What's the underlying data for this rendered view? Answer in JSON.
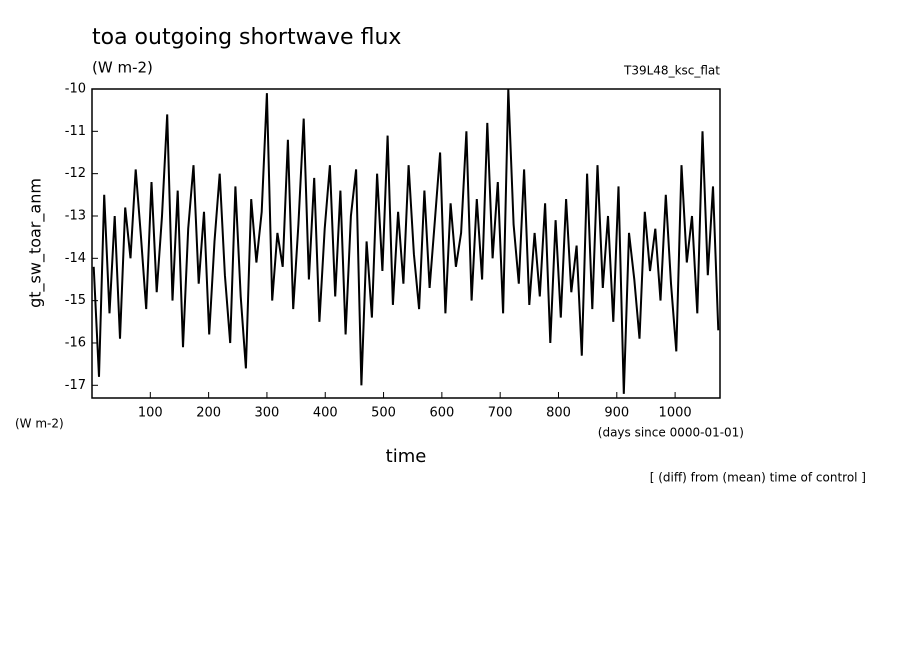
{
  "chart_data": {
    "type": "line",
    "title": "toa outgoing shortwave flux",
    "unit_top": "(W m-2)",
    "run_label": "T39L48_ksc_flat",
    "y_label": "gt_sw_toar_anm",
    "unit_left": "(W m-2)",
    "x_label": "time",
    "x_unit": "(days since 0000-01-01)",
    "note": "[ (diff) from (mean) time of control ]",
    "xlim": [
      0,
      1077
    ],
    "ylim": [
      -17.3,
      -10
    ],
    "xticks": [
      100,
      200,
      300,
      400,
      500,
      600,
      700,
      800,
      900,
      1000
    ],
    "yticks": [
      -10,
      -11,
      -12,
      -13,
      -14,
      -15,
      -16,
      -17
    ],
    "color": "#000000",
    "x": [
      3,
      12,
      21,
      30,
      39,
      48,
      57,
      66,
      75,
      84,
      93,
      102,
      111,
      120,
      129,
      138,
      147,
      156,
      165,
      174,
      183,
      192,
      201,
      210,
      219,
      228,
      237,
      246,
      255,
      264,
      273,
      282,
      291,
      300,
      309,
      318,
      327,
      336,
      345,
      354,
      363,
      372,
      381,
      390,
      399,
      408,
      417,
      426,
      435,
      444,
      453,
      462,
      471,
      480,
      489,
      498,
      507,
      516,
      525,
      534,
      543,
      552,
      561,
      570,
      579,
      588,
      597,
      606,
      615,
      624,
      633,
      642,
      651,
      660,
      669,
      678,
      687,
      696,
      705,
      714,
      723,
      732,
      741,
      750,
      759,
      768,
      777,
      786,
      795,
      804,
      813,
      822,
      831,
      840,
      849,
      858,
      867,
      876,
      885,
      894,
      903,
      912,
      921,
      930,
      939,
      948,
      957,
      966,
      975,
      984,
      993,
      1002,
      1011,
      1020,
      1029,
      1038,
      1047,
      1056,
      1065,
      1074
    ],
    "values": [
      -14.2,
      -16.8,
      -12.5,
      -15.3,
      -13.0,
      -15.9,
      -12.8,
      -14.0,
      -11.9,
      -13.5,
      -15.2,
      -12.2,
      -14.8,
      -13.0,
      -10.6,
      -15.0,
      -12.4,
      -16.1,
      -13.3,
      -11.8,
      -14.6,
      -12.9,
      -15.8,
      -13.6,
      -12.0,
      -14.4,
      -16.0,
      -12.3,
      -14.9,
      -16.6,
      -12.6,
      -14.1,
      -12.9,
      -10.1,
      -15.0,
      -13.4,
      -14.2,
      -11.2,
      -15.2,
      -13.2,
      -10.7,
      -14.5,
      -12.1,
      -15.5,
      -13.3,
      -11.8,
      -14.9,
      -12.4,
      -15.8,
      -13.0,
      -11.9,
      -17.0,
      -13.6,
      -15.4,
      -12.0,
      -14.3,
      -11.1,
      -15.1,
      -12.9,
      -14.6,
      -11.8,
      -13.9,
      -15.2,
      -12.4,
      -14.7,
      -13.1,
      -11.5,
      -15.3,
      -12.7,
      -14.2,
      -13.4,
      -11.0,
      -15.0,
      -12.6,
      -14.5,
      -10.8,
      -14.0,
      -12.2,
      -15.3,
      -10.0,
      -13.2,
      -14.6,
      -11.9,
      -15.1,
      -13.4,
      -14.9,
      -12.7,
      -16.0,
      -13.1,
      -15.4,
      -12.6,
      -14.8,
      -13.7,
      -16.3,
      -12.0,
      -15.2,
      -11.8,
      -14.7,
      -13.0,
      -15.5,
      -12.3,
      -17.2,
      -13.4,
      -14.5,
      -15.9,
      -12.9,
      -14.3,
      -13.3,
      -15.0,
      -12.5,
      -14.6,
      -16.2,
      -11.8,
      -14.1,
      -13.0,
      -15.3,
      -11.0,
      -14.4,
      -12.3,
      -15.7
    ]
  }
}
